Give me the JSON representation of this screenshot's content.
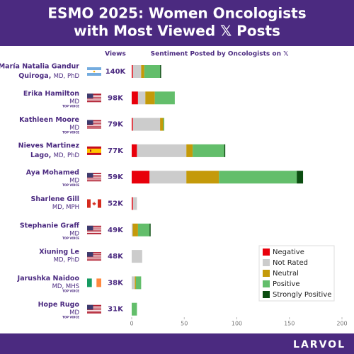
{
  "brand": "LARVOL",
  "chart_data": {
    "type": "stacked-bar-horizontal",
    "title": [
      "ESMO 2025: Women Oncologists",
      "with Most Viewed 𝕏 Posts"
    ],
    "views_header": "Views",
    "sentiment_header": "Sentiment Posted by Oncologists on 𝕏",
    "rows": [
      {
        "name_lines": [
          "María Natalia Gandur",
          "Quiroga,"
        ],
        "credentials": "MD, PhD",
        "views": "140K"
      },
      {
        "name_lines": [
          "Erika Hamilton"
        ],
        "credentials": "MD",
        "top_voice": "TOP VOICE",
        "views": "98K"
      },
      {
        "name_lines": [
          "Kathleen Moore"
        ],
        "credentials": "MD",
        "top_voice": "TOP VOICE",
        "views": "79K"
      },
      {
        "name_lines": [
          "Nieves Martinez",
          "Lago,"
        ],
        "credentials": "MD, PhD",
        "views": "77K"
      },
      {
        "name_lines": [
          "Aya Mohamed"
        ],
        "credentials": "MD",
        "top_voice": "TOP VOICE",
        "views": "59K"
      },
      {
        "name_lines": [
          "Sharlene Gill"
        ],
        "credentials": "MD, MPH",
        "views": "52K"
      },
      {
        "name_lines": [
          "Stephanie Graff"
        ],
        "credentials": "MD",
        "top_voice": "TOP VOICE",
        "views": "49K"
      },
      {
        "name_lines": [
          "Xiuning Le"
        ],
        "credentials": "MD, PhD",
        "views": "48K"
      },
      {
        "name_lines": [
          "Jarushka Naidoo"
        ],
        "credentials": "MD, MHS",
        "top_voice": "TOP VOICE",
        "views": "38K"
      },
      {
        "name_lines": [
          "Hope Rugo"
        ],
        "credentials": "MD",
        "top_voice": "TOP VOICE",
        "views": "31K"
      }
    ],
    "series": [
      {
        "name": "Negative",
        "color": "#e8000b",
        "values": [
          1,
          6,
          1,
          5,
          17,
          1,
          0,
          0,
          0,
          0
        ]
      },
      {
        "name": "Not Rated",
        "color": "#cccccc",
        "values": [
          8,
          7,
          26,
          47,
          35,
          4,
          1,
          10,
          3,
          0
        ]
      },
      {
        "name": "Neutral",
        "color": "#c49a0a",
        "values": [
          3,
          9,
          3,
          6,
          31,
          0,
          5,
          0,
          1,
          0
        ]
      },
      {
        "name": "Positive",
        "color": "#63be6b",
        "values": [
          15,
          19,
          1,
          30,
          74,
          0,
          11,
          0,
          5,
          5
        ]
      },
      {
        "name": "Strongly Positive",
        "color": "#0b4d10",
        "values": [
          1,
          0,
          0,
          1,
          6,
          0,
          1,
          0,
          0,
          0
        ]
      }
    ],
    "xlim": [
      0,
      200
    ],
    "xticks": [
      0,
      50,
      100,
      150,
      200
    ],
    "grid": false,
    "legend": "lower-right"
  }
}
